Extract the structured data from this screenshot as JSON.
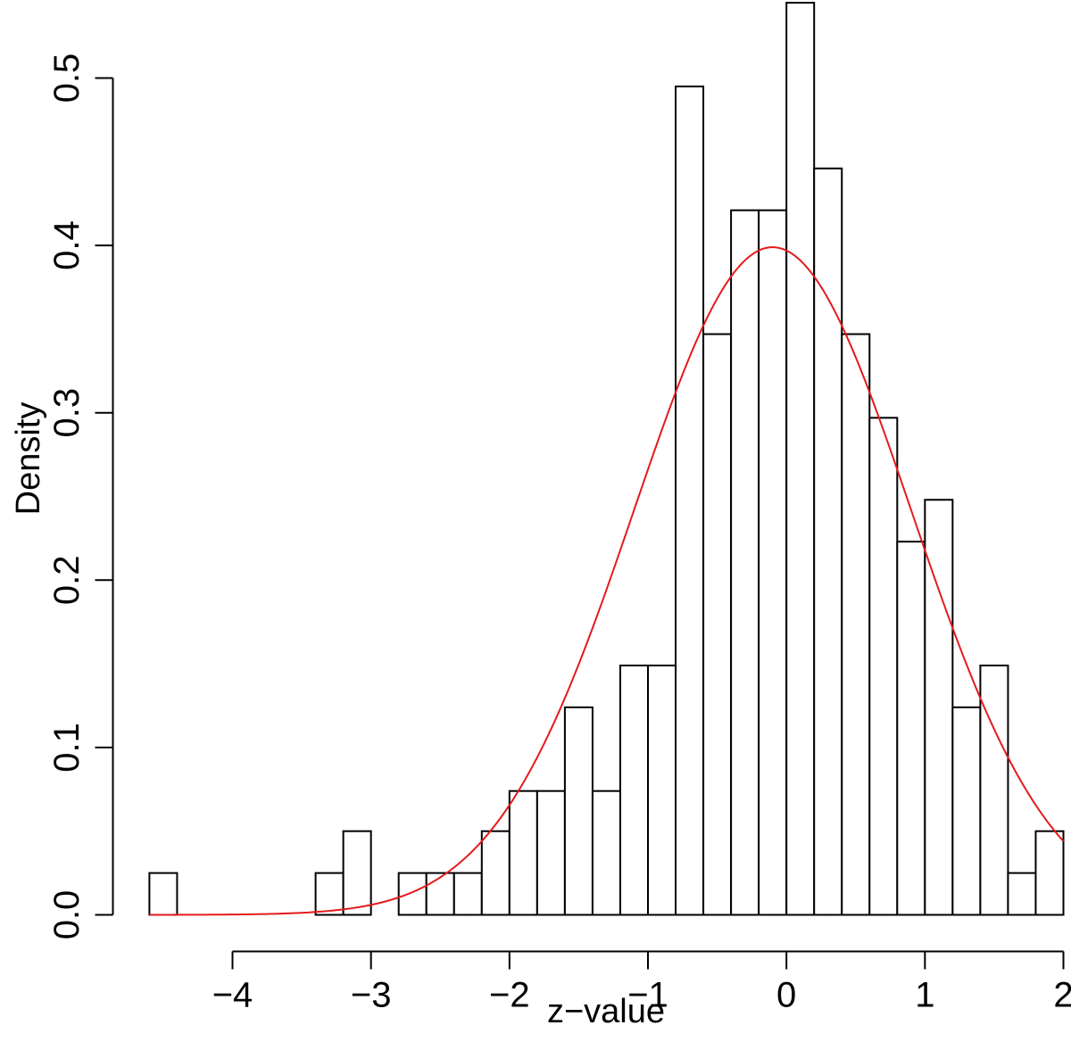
{
  "chart_data": {
    "type": "histogram",
    "xlabel": "z−value",
    "ylabel": "Density",
    "xlim": [
      -4.6,
      2.0
    ],
    "ylim": [
      0,
      0.5
    ],
    "x_ticks": [
      -4,
      -3,
      -2,
      -1,
      0,
      1,
      2
    ],
    "x_tick_labels": [
      "−4",
      "−3",
      "−2",
      "−1",
      "0",
      "1",
      "2"
    ],
    "y_ticks": [
      0.0,
      0.1,
      0.2,
      0.3,
      0.4,
      0.5
    ],
    "y_tick_labels": [
      "0.0",
      "0.1",
      "0.2",
      "0.3",
      "0.4",
      "0.5"
    ],
    "grid": false,
    "bin_width": 0.2,
    "bins": [
      {
        "start": -4.6,
        "end": -4.4,
        "density": 0.025
      },
      {
        "start": -4.4,
        "end": -4.2,
        "density": 0.0
      },
      {
        "start": -4.2,
        "end": -4.0,
        "density": 0.0
      },
      {
        "start": -4.0,
        "end": -3.8,
        "density": 0.0
      },
      {
        "start": -3.8,
        "end": -3.6,
        "density": 0.0
      },
      {
        "start": -3.6,
        "end": -3.4,
        "density": 0.0
      },
      {
        "start": -3.4,
        "end": -3.2,
        "density": 0.025
      },
      {
        "start": -3.2,
        "end": -3.0,
        "density": 0.05
      },
      {
        "start": -3.0,
        "end": -2.8,
        "density": 0.0
      },
      {
        "start": -2.8,
        "end": -2.6,
        "density": 0.025
      },
      {
        "start": -2.6,
        "end": -2.4,
        "density": 0.025
      },
      {
        "start": -2.4,
        "end": -2.2,
        "density": 0.025
      },
      {
        "start": -2.2,
        "end": -2.0,
        "density": 0.05
      },
      {
        "start": -2.0,
        "end": -1.8,
        "density": 0.074
      },
      {
        "start": -1.8,
        "end": -1.6,
        "density": 0.074
      },
      {
        "start": -1.6,
        "end": -1.4,
        "density": 0.124
      },
      {
        "start": -1.4,
        "end": -1.2,
        "density": 0.074
      },
      {
        "start": -1.2,
        "end": -1.0,
        "density": 0.149
      },
      {
        "start": -1.0,
        "end": -0.8,
        "density": 0.149
      },
      {
        "start": -0.8,
        "end": -0.6,
        "density": 0.495
      },
      {
        "start": -0.6,
        "end": -0.4,
        "density": 0.347
      },
      {
        "start": -0.4,
        "end": -0.2,
        "density": 0.421
      },
      {
        "start": -0.2,
        "end": 0.0,
        "density": 0.421
      },
      {
        "start": 0.0,
        "end": 0.2,
        "density": 0.545
      },
      {
        "start": 0.2,
        "end": 0.4,
        "density": 0.446
      },
      {
        "start": 0.4,
        "end": 0.6,
        "density": 0.347
      },
      {
        "start": 0.6,
        "end": 0.8,
        "density": 0.297
      },
      {
        "start": 0.8,
        "end": 1.0,
        "density": 0.223
      },
      {
        "start": 1.0,
        "end": 1.2,
        "density": 0.248
      },
      {
        "start": 1.2,
        "end": 1.4,
        "density": 0.124
      },
      {
        "start": 1.4,
        "end": 1.6,
        "density": 0.149
      },
      {
        "start": 1.6,
        "end": 1.8,
        "density": 0.025
      },
      {
        "start": 1.8,
        "end": 2.0,
        "density": 0.05
      }
    ],
    "curve": {
      "type": "normal_density",
      "mean": -0.1,
      "sd": 1.0,
      "x_range": [
        -4.6,
        2.0
      ],
      "color": "#e41a1c"
    }
  }
}
